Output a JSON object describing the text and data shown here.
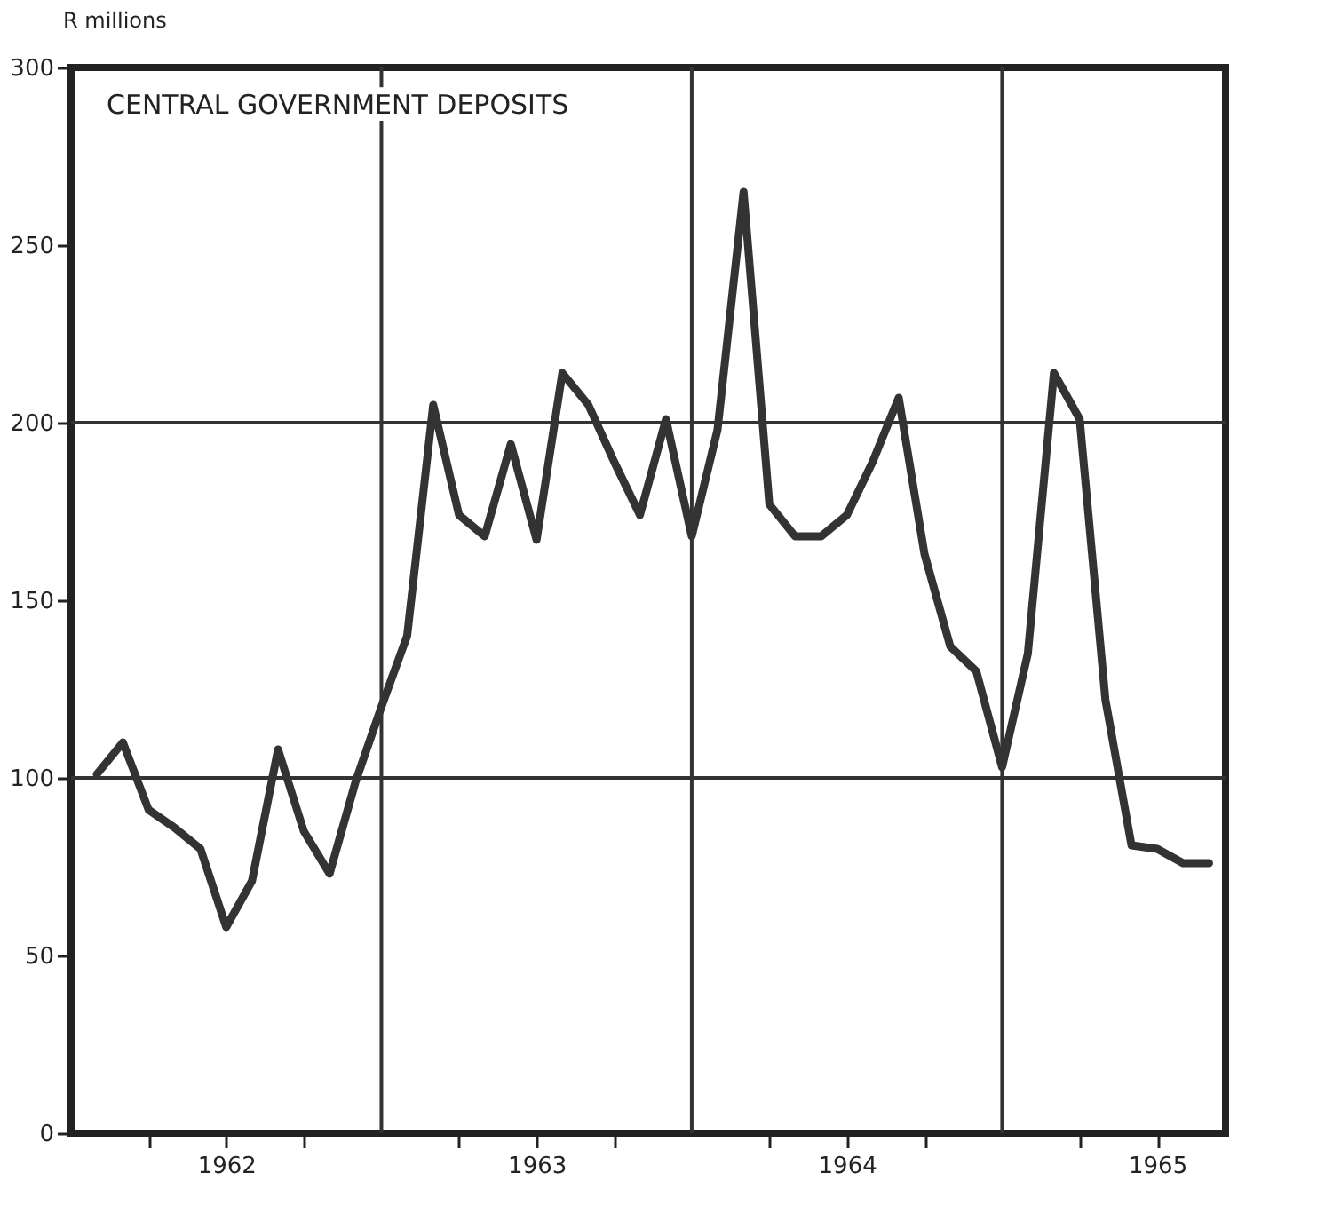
{
  "chart_data": {
    "type": "line",
    "title": "CENTRAL GOVERNMENT DEPOSITS",
    "ylabel": "R millions",
    "x": [
      1962.083,
      1962.167,
      1962.25,
      1962.333,
      1962.417,
      1962.5,
      1962.583,
      1962.667,
      1962.75,
      1962.833,
      1962.917,
      1963.0,
      1963.083,
      1963.167,
      1963.25,
      1963.333,
      1963.417,
      1963.5,
      1963.583,
      1963.667,
      1963.75,
      1963.833,
      1963.917,
      1964.0,
      1964.083,
      1964.167,
      1964.25,
      1964.333,
      1964.417,
      1964.5,
      1964.583,
      1964.667,
      1964.75,
      1964.833,
      1964.917,
      1965.0,
      1965.083,
      1965.167,
      1965.25,
      1965.333,
      1965.417,
      1965.5,
      1965.583,
      1965.667
    ],
    "series": [
      {
        "color": "#333333",
        "values": [
          101,
          110,
          91,
          86,
          80,
          58,
          71,
          108,
          85,
          73,
          99,
          120,
          140,
          205,
          174,
          168,
          194,
          167,
          214,
          205,
          189,
          174,
          201,
          168,
          198,
          265,
          177,
          168,
          168,
          174,
          189,
          207,
          163,
          137,
          130,
          103,
          135,
          214,
          201,
          122,
          81,
          80,
          76,
          76
        ]
      }
    ],
    "xlim": [
      1962,
      1965.72
    ],
    "ylim": [
      0,
      300
    ],
    "xticks": [
      {
        "value": 1962.25,
        "label": null
      },
      {
        "value": 1962.5,
        "label": "1962"
      },
      {
        "value": 1962.75,
        "label": null
      },
      {
        "value": 1963.25,
        "label": null
      },
      {
        "value": 1963.5,
        "label": "1963"
      },
      {
        "value": 1963.75,
        "label": null
      },
      {
        "value": 1964.25,
        "label": null
      },
      {
        "value": 1964.5,
        "label": "1964"
      },
      {
        "value": 1964.75,
        "label": null
      },
      {
        "value": 1965.25,
        "label": null
      },
      {
        "value": 1965.5,
        "label": "1965"
      }
    ],
    "yticks": [
      0,
      50,
      100,
      150,
      200,
      250,
      300
    ],
    "ref_lines": [
      {
        "axis": "x",
        "value": 1963
      },
      {
        "axis": "x",
        "value": 1964
      },
      {
        "axis": "x",
        "value": 1965
      },
      {
        "axis": "y",
        "value": 100
      },
      {
        "axis": "y",
        "value": 200
      }
    ],
    "grid": false,
    "marker": "none",
    "line_style": "solid"
  }
}
